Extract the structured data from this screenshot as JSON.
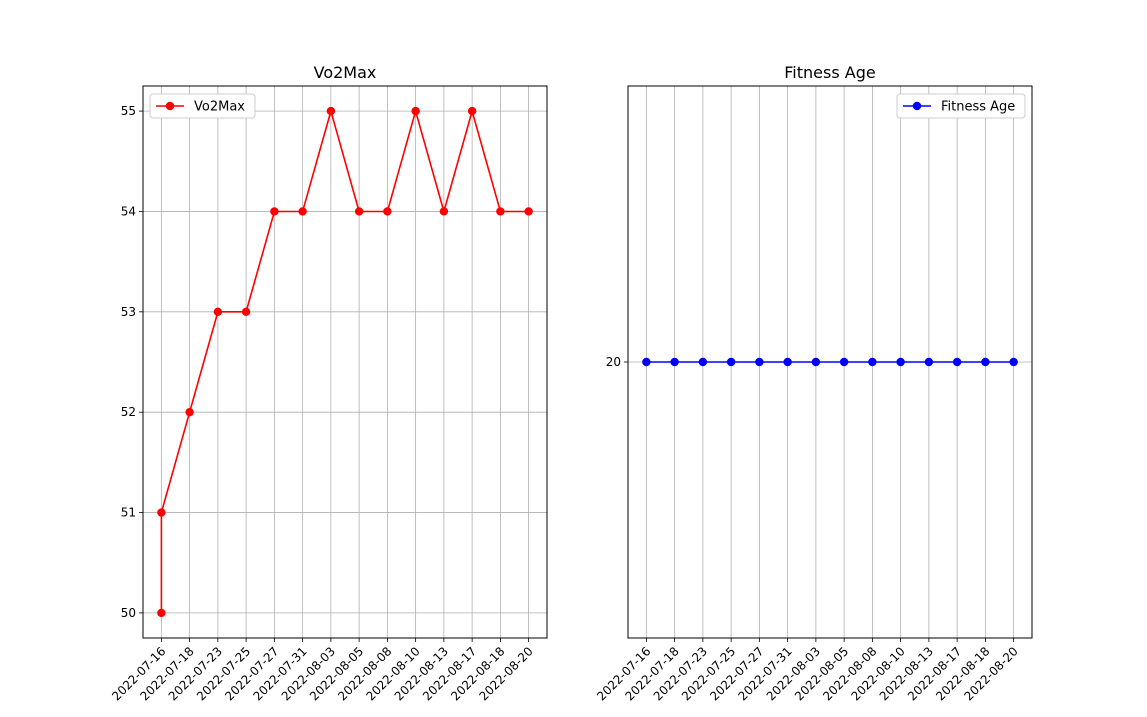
{
  "chart_data": [
    {
      "type": "line",
      "title": "Vo2Max",
      "xlabel": "",
      "ylabel": "",
      "x": [
        "2022-07-16",
        "2022-07-16",
        "2022-07-18",
        "2022-07-23",
        "2022-07-25",
        "2022-07-27",
        "2022-07-31",
        "2022-08-03",
        "2022-08-05",
        "2022-08-08",
        "2022-08-10",
        "2022-08-13",
        "2022-08-17",
        "2022-08-18",
        "2022-08-20"
      ],
      "x_ticks": [
        "2022-07-16",
        "2022-07-18",
        "2022-07-23",
        "2022-07-25",
        "2022-07-27",
        "2022-07-31",
        "2022-08-03",
        "2022-08-05",
        "2022-08-08",
        "2022-08-10",
        "2022-08-13",
        "2022-08-17",
        "2022-08-18",
        "2022-08-20"
      ],
      "y_ticks": [
        50,
        51,
        52,
        53,
        54,
        55
      ],
      "ylim": [
        49.75,
        55.25
      ],
      "grid": true,
      "legend_position": "upper left",
      "series": [
        {
          "name": "Vo2Max",
          "color": "#ff0000",
          "marker": "circle",
          "values": [
            50,
            51,
            52,
            53,
            53,
            54,
            54,
            55,
            54,
            54,
            55,
            54,
            55,
            54,
            54
          ]
        }
      ]
    },
    {
      "type": "line",
      "title": "Fitness Age",
      "xlabel": "",
      "ylabel": "",
      "x": [
        "2022-07-16",
        "2022-07-18",
        "2022-07-23",
        "2022-07-25",
        "2022-07-27",
        "2022-07-31",
        "2022-08-03",
        "2022-08-05",
        "2022-08-08",
        "2022-08-10",
        "2022-08-13",
        "2022-08-17",
        "2022-08-18",
        "2022-08-20"
      ],
      "x_ticks": [
        "2022-07-16",
        "2022-07-18",
        "2022-07-23",
        "2022-07-25",
        "2022-07-27",
        "2022-07-31",
        "2022-08-03",
        "2022-08-05",
        "2022-08-08",
        "2022-08-10",
        "2022-08-13",
        "2022-08-17",
        "2022-08-18",
        "2022-08-20"
      ],
      "y_ticks": [
        20
      ],
      "ylim": [
        19.945,
        20.055
      ],
      "grid": true,
      "legend_position": "upper right",
      "series": [
        {
          "name": "Fitness Age",
          "color": "#0000ff",
          "marker": "circle",
          "values": [
            20,
            20,
            20,
            20,
            20,
            20,
            20,
            20,
            20,
            20,
            20,
            20,
            20,
            20
          ]
        }
      ]
    }
  ]
}
